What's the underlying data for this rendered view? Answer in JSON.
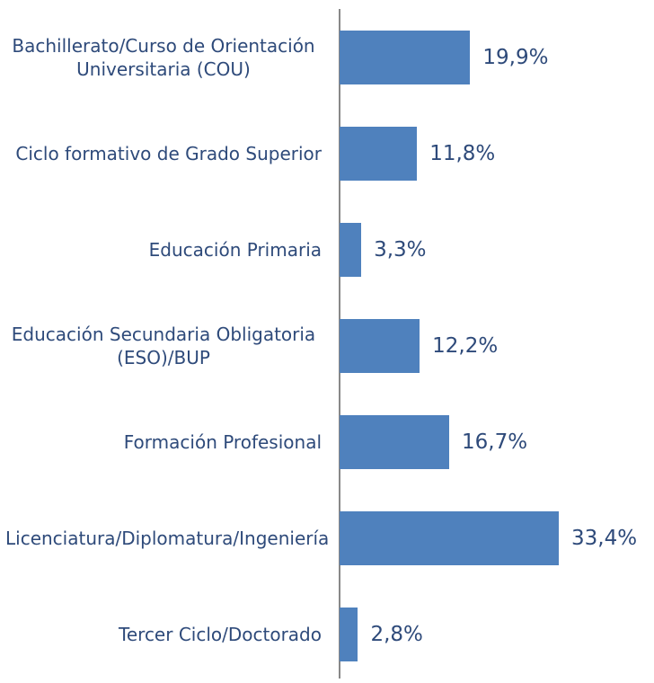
{
  "chart_data": {
    "type": "barh",
    "categories": [
      "Bachillerato/Curso de Orientación Universitaria (COU)",
      "Ciclo formativo de Grado Superior",
      "Educación Primaria",
      "Educación Secundaria Obligatoria (ESO)/BUP",
      "Formación Profesional",
      "Licenciatura/Diplomatura/Ingeniería",
      "Tercer Ciclo/Doctorado"
    ],
    "values": [
      19.9,
      11.8,
      3.3,
      12.2,
      16.7,
      33.4,
      2.8
    ],
    "value_labels": [
      "19,9%",
      "11,8%",
      "3,3%",
      "12,2%",
      "16,7%",
      "33,4%",
      "2,8%"
    ],
    "color": "#4f81bd"
  }
}
